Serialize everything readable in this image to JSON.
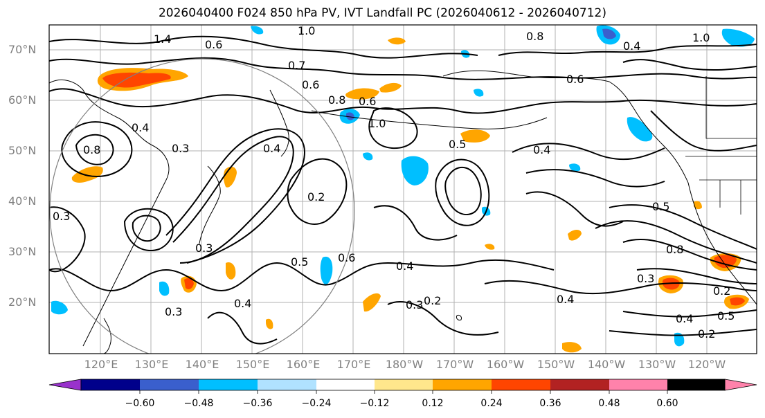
{
  "title": "2026040400 F024 850 hPa PV, IVT Landfall PC (2026040612 - 2026040712)",
  "lat_labels": [
    "70°N",
    "60°N",
    "50°N",
    "40°N",
    "30°N",
    "20°N"
  ],
  "lon_labels": [
    "120°E",
    "130°E",
    "140°E",
    "150°E",
    "160°E",
    "170°E",
    "180°W",
    "170°W",
    "160°W",
    "150°W",
    "140°W",
    "130°W",
    "120°W"
  ],
  "colorbar": {
    "ticks": [
      "−0.60",
      "−0.48",
      "−0.36",
      "−0.24",
      "−0.12",
      "0.12",
      "0.24",
      "0.36",
      "0.48",
      "0.60"
    ],
    "colors": [
      "#9932CC",
      "#00008B",
      "#3A5FCD",
      "#00BFFF",
      "#B0E2FF",
      "#FFFFFF",
      "#FFE78C",
      "#FFA500",
      "#FF4500",
      "#B22222",
      "#FF82AB"
    ]
  },
  "contour_labels": [
    "1.4",
    "0.6",
    "1.0",
    "0.8",
    "1.0",
    "0.4",
    "0.7",
    "0.6",
    "0.8",
    "0.6",
    "1.0",
    "0.5",
    "0.4",
    "0.6",
    "0.3",
    "0.4",
    "0.8",
    "0.3",
    "0.2",
    "0.4",
    "0.5",
    "0.3",
    "0.6",
    "0.4",
    "0.3",
    "0.2",
    "0.3",
    "0.4",
    "0.5",
    "0.8",
    "0.3",
    "0.2",
    "0.4",
    "0.5",
    "0.2",
    "0.4"
  ],
  "colors": {
    "contour": "#000000",
    "grid": "#b0b0b0",
    "coast": "#000000",
    "circle": "#808080"
  }
}
